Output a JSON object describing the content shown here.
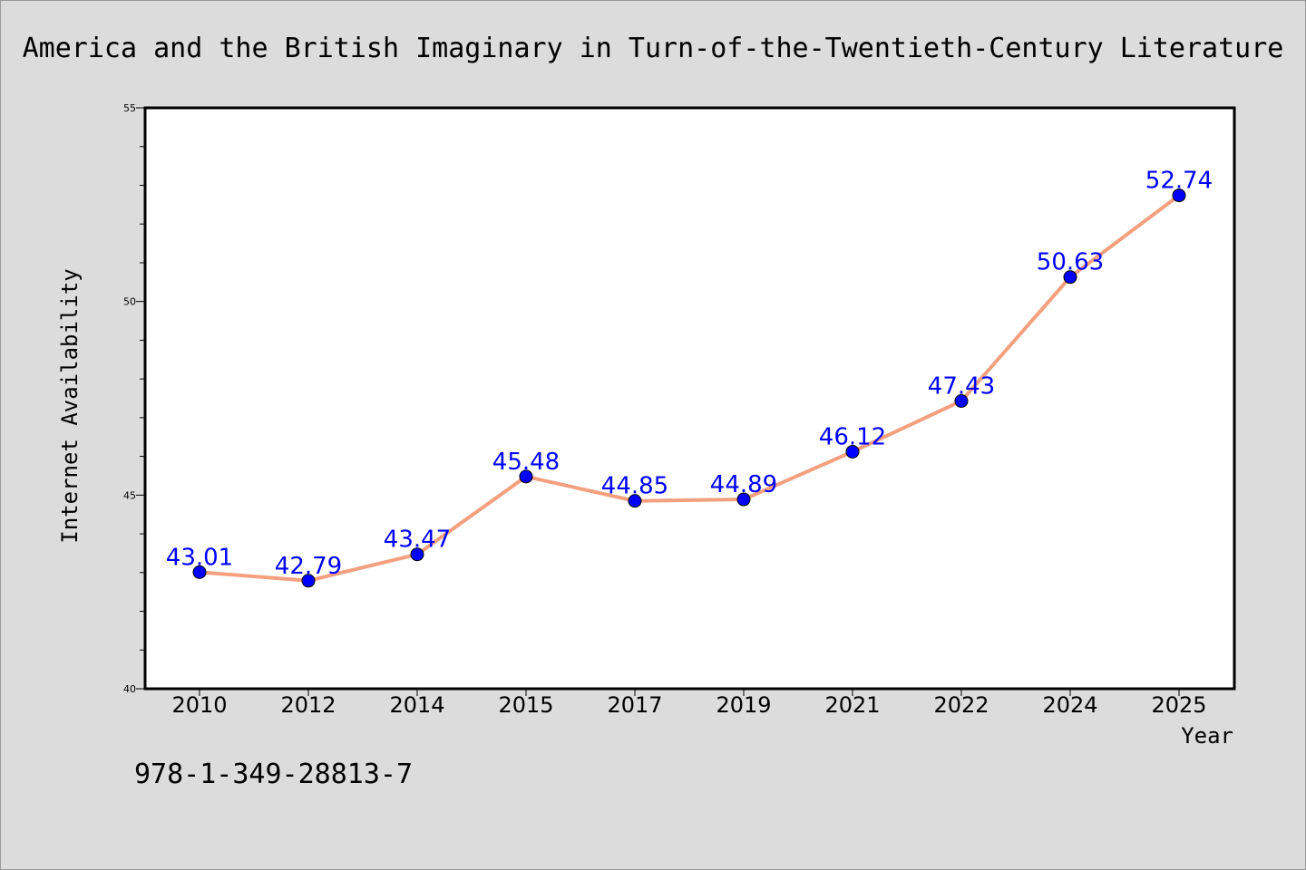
{
  "chart_data": {
    "type": "line",
    "title": "America and the British Imaginary in Turn-of-the-Twentieth-Century Literature",
    "xlabel": "Year",
    "ylabel": "Internet Availability",
    "categories": [
      "2010",
      "2012",
      "2014",
      "2015",
      "2017",
      "2019",
      "2021",
      "2022",
      "2024",
      "2025"
    ],
    "series": [
      {
        "values": [
          43.01,
          42.79,
          43.47,
          45.48,
          44.85,
          44.89,
          46.12,
          47.43,
          50.63,
          52.74
        ]
      }
    ],
    "data_labels": [
      "43.01",
      "42.79",
      "43.47",
      "45.48",
      "44.85",
      "44.89",
      "46.12",
      "47.43",
      "50.63",
      "52.74"
    ],
    "ylim": [
      40,
      55
    ],
    "yticks": [
      40,
      45,
      50,
      55
    ],
    "yminor_step": 1,
    "grid": false,
    "legend": "none",
    "colors": {
      "line": "#f4a07e",
      "marker": "#0000ff",
      "data_label": "#0000ff"
    }
  },
  "footer": {
    "isbn": "978-1-349-28813-7"
  }
}
